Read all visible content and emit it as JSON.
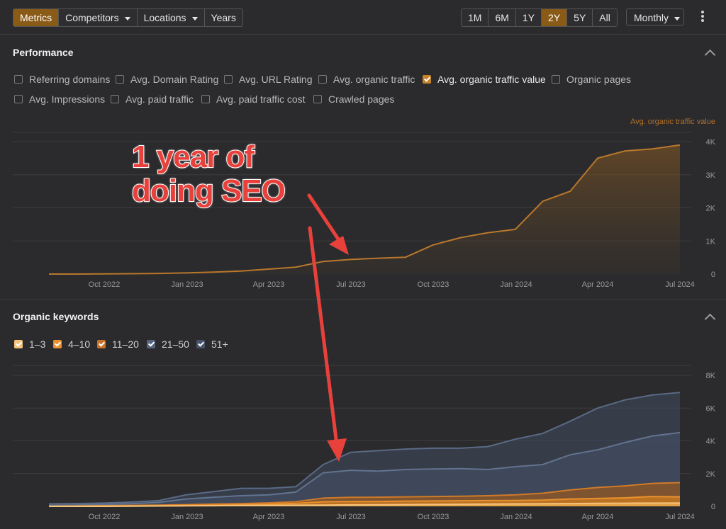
{
  "toolbar": {
    "left_tabs": [
      {
        "label": "Metrics",
        "active": true,
        "dropdown": false
      },
      {
        "label": "Competitors",
        "active": false,
        "dropdown": true
      },
      {
        "label": "Locations",
        "active": false,
        "dropdown": true
      },
      {
        "label": "Years",
        "active": false,
        "dropdown": false
      }
    ],
    "ranges": [
      {
        "label": "1M",
        "active": false
      },
      {
        "label": "6M",
        "active": false
      },
      {
        "label": "1Y",
        "active": false
      },
      {
        "label": "2Y",
        "active": true
      },
      {
        "label": "5Y",
        "active": false
      },
      {
        "label": "All",
        "active": false
      }
    ],
    "interval": "Monthly",
    "more_icon": "kebab-icon"
  },
  "performance": {
    "title": "Performance",
    "metrics": [
      {
        "label": "Referring domains",
        "checked": false
      },
      {
        "label": "Avg. Domain Rating",
        "checked": false
      },
      {
        "label": "Avg. URL Rating",
        "checked": false
      },
      {
        "label": "Avg. organic traffic",
        "checked": false
      },
      {
        "label": "Avg. organic traffic value",
        "checked": true
      },
      {
        "label": "Organic pages",
        "checked": false
      },
      {
        "label": "Avg. Impressions",
        "checked": false
      },
      {
        "label": "Avg. paid traffic",
        "checked": false
      },
      {
        "label": "Avg. paid traffic cost",
        "checked": false
      },
      {
        "label": "Crawled pages",
        "checked": false
      }
    ],
    "accent": "#c8822a"
  },
  "keywords": {
    "title": "Organic keywords",
    "legend": [
      {
        "label": "1–3",
        "color": "#f5c27a"
      },
      {
        "label": "4–10",
        "color": "#e8912f"
      },
      {
        "label": "11–20",
        "color": "#c8722a"
      },
      {
        "label": "21–50",
        "color": "#56657e"
      },
      {
        "label": "51+",
        "color": "#46536a"
      }
    ]
  },
  "annotation": {
    "line1": "1 year of",
    "line2": "doing SEO",
    "color": "#e8413c"
  },
  "chart_data": [
    {
      "type": "area",
      "title": "Performance",
      "series_label": "Avg. organic traffic value",
      "x": [
        "2022-08",
        "2022-09",
        "2022-10",
        "2022-11",
        "2022-12",
        "2023-01",
        "2023-02",
        "2023-03",
        "2023-04",
        "2023-05",
        "2023-06",
        "2023-07",
        "2023-08",
        "2023-09",
        "2023-10",
        "2023-11",
        "2023-12",
        "2024-01",
        "2024-02",
        "2024-03",
        "2024-04",
        "2024-05",
        "2024-06",
        "2024-07"
      ],
      "series": [
        {
          "name": "Avg. organic traffic value",
          "values": [
            0,
            0,
            5,
            10,
            20,
            35,
            60,
            90,
            150,
            210,
            380,
            440,
            480,
            510,
            880,
            1100,
            1250,
            1350,
            2200,
            2500,
            3500,
            3720,
            3780,
            3900
          ]
        }
      ],
      "x_ticks": [
        "Oct 2022",
        "Jan 2023",
        "Apr 2023",
        "Jul 2023",
        "Oct 2023",
        "Jan 2024",
        "Apr 2024",
        "Jul 2024"
      ],
      "y_ticks": [
        "0",
        "1K",
        "2K",
        "3K",
        "4K"
      ],
      "ylim": [
        0,
        4000
      ],
      "grid": true
    },
    {
      "type": "area",
      "title": "Organic keywords",
      "x": [
        "2022-08",
        "2022-09",
        "2022-10",
        "2022-11",
        "2022-12",
        "2023-01",
        "2023-02",
        "2023-03",
        "2023-04",
        "2023-05",
        "2023-06",
        "2023-07",
        "2023-08",
        "2023-09",
        "2023-10",
        "2023-11",
        "2023-12",
        "2024-01",
        "2024-02",
        "2024-03",
        "2024-04",
        "2024-05",
        "2024-06",
        "2024-07"
      ],
      "series": [
        {
          "name": "1–3",
          "values": [
            0,
            0,
            0,
            10,
            20,
            30,
            40,
            50,
            60,
            70,
            80,
            90,
            100,
            110,
            120,
            130,
            140,
            150,
            160,
            170,
            180,
            190,
            200,
            200
          ]
        },
        {
          "name": "4–10",
          "values": [
            0,
            10,
            20,
            30,
            40,
            60,
            80,
            100,
            130,
            180,
            280,
            290,
            300,
            320,
            330,
            340,
            350,
            360,
            380,
            450,
            480,
            520,
            600,
            580
          ]
        },
        {
          "name": "11–20",
          "values": [
            0,
            20,
            40,
            60,
            80,
            100,
            140,
            170,
            210,
            280,
            500,
            550,
            560,
            580,
            600,
            620,
            650,
            700,
            800,
            1000,
            1150,
            1250,
            1400,
            1450
          ]
        },
        {
          "name": "21–50",
          "values": [
            50,
            80,
            120,
            160,
            240,
            450,
            560,
            650,
            700,
            870,
            2050,
            2200,
            2150,
            2250,
            2280,
            2300,
            2250,
            2420,
            2550,
            3150,
            3450,
            3900,
            4300,
            4500
          ]
        },
        {
          "name": "51+",
          "values": [
            150,
            170,
            200,
            260,
            350,
            700,
            900,
            1100,
            1100,
            1200,
            2550,
            3300,
            3400,
            3500,
            3550,
            3550,
            3650,
            4100,
            4450,
            5200,
            6000,
            6500,
            6800,
            6950
          ]
        }
      ],
      "x_ticks": [
        "Oct 2022",
        "Jan 2023",
        "Apr 2023",
        "Jul 2023",
        "Oct 2023",
        "Jan 2024",
        "Apr 2024",
        "Jul 2024"
      ],
      "y_ticks": [
        "0",
        "2K",
        "4K",
        "6K",
        "8K"
      ],
      "ylim": [
        0,
        8000
      ],
      "grid": true
    }
  ]
}
